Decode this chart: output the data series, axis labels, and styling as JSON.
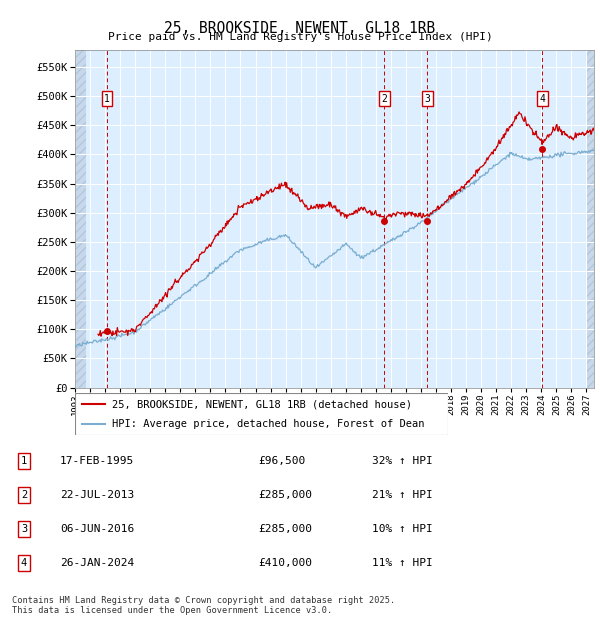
{
  "title": "25, BROOKSIDE, NEWENT, GL18 1RB",
  "subtitle": "Price paid vs. HM Land Registry's House Price Index (HPI)",
  "ytick_values": [
    0,
    50000,
    100000,
    150000,
    200000,
    250000,
    300000,
    350000,
    400000,
    450000,
    500000,
    550000
  ],
  "ylim": [
    0,
    580000
  ],
  "xlim_start": 1993.0,
  "xlim_end": 2027.5,
  "sale_markers": [
    {
      "num": 1,
      "year": 1995.13,
      "price": 96500
    },
    {
      "num": 2,
      "year": 2013.55,
      "price": 285000
    },
    {
      "num": 3,
      "year": 2016.43,
      "price": 285000
    },
    {
      "num": 4,
      "year": 2024.07,
      "price": 410000
    }
  ],
  "legend_entries": [
    {
      "label": "25, BROOKSIDE, NEWENT, GL18 1RB (detached house)",
      "color": "#cc0000"
    },
    {
      "label": "HPI: Average price, detached house, Forest of Dean",
      "color": "#7aadcf"
    }
  ],
  "table_rows": [
    {
      "num": 1,
      "date": "17-FEB-1995",
      "price": "£96,500",
      "hpi": "32% ↑ HPI"
    },
    {
      "num": 2,
      "date": "22-JUL-2013",
      "price": "£285,000",
      "hpi": "21% ↑ HPI"
    },
    {
      "num": 3,
      "date": "06-JUN-2016",
      "price": "£285,000",
      "hpi": "10% ↑ HPI"
    },
    {
      "num": 4,
      "date": "26-JAN-2024",
      "price": "£410,000",
      "hpi": "11% ↑ HPI"
    }
  ],
  "footer": "Contains HM Land Registry data © Crown copyright and database right 2025.\nThis data is licensed under the Open Government Licence v3.0.",
  "bg_color": "#ddeeff",
  "sale_color": "#cc0000",
  "hpi_color": "#7aadcf",
  "marker_dot_color": "#cc0000"
}
